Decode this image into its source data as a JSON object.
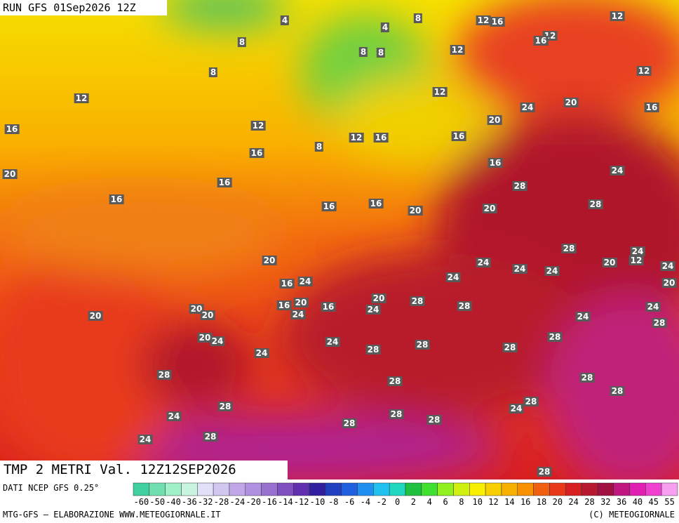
{
  "header": {
    "run": "RUN GFS 01Sep2026 12Z"
  },
  "map": {
    "title": "TMP 2 METRI Val. 12Z12SEP2026",
    "labels": [
      4,
      8,
      8,
      8,
      4,
      8,
      8,
      12,
      16,
      12,
      12,
      16,
      12,
      12,
      12,
      12,
      24,
      20,
      16,
      16,
      12,
      20,
      12,
      16,
      16,
      8,
      16,
      16,
      24,
      20,
      16,
      28,
      16,
      16,
      16,
      20,
      20,
      28,
      28,
      24,
      20,
      24,
      24,
      24,
      20,
      12,
      24,
      16,
      24,
      24,
      20,
      16,
      20,
      16,
      20,
      24,
      28,
      28,
      24,
      20,
      20,
      20,
      24,
      24,
      28,
      20,
      24,
      24,
      24,
      28,
      28,
      28,
      28,
      28,
      28,
      28,
      28,
      28,
      28,
      24,
      24,
      28,
      28,
      28,
      28,
      24,
      28
    ]
  },
  "legend": {
    "source": "DATI NCEP GFS 0.25°",
    "scale": [
      -60,
      -50,
      -40,
      -36,
      -32,
      -28,
      -24,
      -20,
      -16,
      -14,
      -12,
      -10,
      -8,
      -6,
      -4,
      -2,
      0,
      2,
      4,
      6,
      8,
      10,
      12,
      14,
      16,
      18,
      20,
      24,
      28,
      32,
      36,
      40,
      45,
      55
    ]
  },
  "footer": {
    "credit": "MTG-GFS — ELABORAZIONE WWW.METEOGIORNALE.IT",
    "copyright": "(C) METEOGIORNALE"
  }
}
